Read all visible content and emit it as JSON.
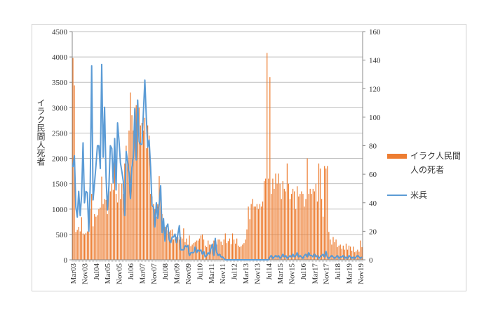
{
  "chart_data": {
    "type": "bar+line",
    "title": "",
    "ylabel": "イラク民間人死者",
    "ylabel_right": "",
    "ylim": [
      0,
      4500
    ],
    "ylim_right": [
      0,
      160
    ],
    "yticks": [
      "0",
      "500",
      "1000",
      "1500",
      "2000",
      "2500",
      "3000",
      "3500",
      "4000",
      "4500"
    ],
    "yticks_right": [
      "0",
      "20",
      "40",
      "60",
      "80",
      "100",
      "120",
      "140",
      "160"
    ],
    "grid": true,
    "legend_position": "right",
    "start_month": "2003-03",
    "xtick_labels": [
      "Mar03",
      "Nov03",
      "Jul04",
      "Mar05",
      "Nov05",
      "Jul06",
      "Mar07",
      "Nov07",
      "Jul08",
      "Mar09",
      "Nov09",
      "Jul10",
      "Mar11",
      "Nov11",
      "Jul12",
      "Mar13",
      "Nov13",
      "Jul14",
      "Mar15",
      "Nov15",
      "Jul16",
      "Mar17",
      "Nov17",
      "Jul18",
      "Mar19",
      "Nov19"
    ],
    "xtick_every_months": 8,
    "series": [
      {
        "name": "イラク人民間人の死者",
        "type": "bar",
        "axis": "left",
        "color": "#ED7D31",
        "values": [
          3980,
          3440,
          550,
          590,
          650,
          560,
          840,
          520,
          500,
          530,
          560,
          600,
          1000,
          1300,
          660,
          900,
          850,
          880,
          1000,
          1030,
          1640,
          1100,
          1200,
          1180,
          900,
          1400,
          1350,
          1500,
          1380,
          2400,
          1300,
          1130,
          1500,
          1200,
          1500,
          1300,
          1900,
          2250,
          2000,
          2550,
          3300,
          2850,
          2550,
          3000,
          3050,
          2800,
          3000,
          2650,
          2700,
          2550,
          2800,
          2200,
          2650,
          2450,
          1300,
          1250,
          1100,
          1000,
          850,
          1100,
          1650,
          1300,
          900,
          750,
          650,
          600,
          580,
          550,
          580,
          600,
          400,
          420,
          450,
          450,
          400,
          450,
          420,
          620,
          350,
          420,
          300,
          480,
          270,
          300,
          330,
          350,
          380,
          380,
          420,
          480,
          500,
          400,
          280,
          250,
          380,
          300,
          300,
          300,
          380,
          350,
          300,
          400,
          400,
          360,
          290,
          400,
          520,
          330,
          370,
          420,
          310,
          520,
          400,
          320,
          420,
          280,
          250,
          270,
          300,
          330,
          400,
          600,
          1050,
          800,
          1100,
          1200,
          1050,
          1050,
          1100,
          1000,
          1100,
          1050,
          1150,
          1550,
          1600,
          4080,
          1600,
          3600,
          1300,
          1600,
          1400,
          1700,
          1500,
          1700,
          1500,
          1200,
          1550,
          1400,
          1350,
          1900,
          1500,
          1200,
          1300,
          1400,
          1350,
          1000,
          1450,
          1250,
          1300,
          1350,
          1300,
          1050,
          1200,
          2000,
          1300,
          1400,
          1300,
          1400,
          1350,
          1500,
          1150,
          1900,
          1800,
          1200,
          850,
          1850,
          1800,
          1850,
          550,
          400,
          300,
          450,
          350,
          400,
          250,
          280,
          300,
          220,
          280,
          200,
          320,
          200,
          280,
          260,
          180,
          260,
          150,
          170,
          200,
          160,
          380,
          250
        ]
      },
      {
        "name": "米兵",
        "type": "line",
        "axis": "right",
        "color": "#5B9BD5",
        "values": [
          65,
          73,
          37,
          30,
          48,
          31,
          45,
          82,
          40,
          48,
          47,
          20,
          52,
          136,
          42,
          54,
          66,
          80,
          80,
          64,
          137,
          72,
          107,
          58,
          35,
          52,
          80,
          78,
          54,
          85,
          49,
          96,
          84,
          68,
          62,
          55,
          31,
          76,
          69,
          61,
          43,
          65,
          72,
          106,
          70,
          112,
          83,
          81,
          81,
          104,
          126,
          101,
          79,
          84,
          65,
          38,
          37,
          23,
          40,
          29,
          39,
          52,
          19,
          29,
          13,
          23,
          25,
          14,
          12,
          16,
          16,
          18,
          12,
          18,
          24,
          7,
          7,
          7,
          10,
          9,
          10,
          3,
          5,
          5,
          5,
          9,
          5,
          7,
          6,
          7,
          4,
          6,
          2,
          3,
          5,
          4,
          8,
          11,
          3,
          15,
          5,
          3,
          4,
          2,
          2,
          1,
          0,
          0,
          0,
          0,
          0,
          0,
          0,
          0,
          0,
          0,
          0,
          0,
          0,
          0,
          0,
          0,
          0,
          0,
          0,
          0,
          0,
          0,
          0,
          0,
          0,
          0,
          0,
          0,
          0,
          0,
          0,
          2,
          3,
          1,
          2,
          3,
          2,
          3,
          1,
          2,
          4,
          2,
          3,
          1,
          2,
          3,
          2,
          4,
          2,
          3,
          5,
          2,
          3,
          2,
          1,
          3,
          4,
          2,
          5,
          3,
          3,
          2,
          4,
          2,
          3,
          1,
          2,
          3,
          4,
          2,
          6,
          2,
          1,
          2,
          3,
          2,
          1,
          2,
          3,
          1,
          2,
          2,
          3,
          1,
          2,
          1,
          3,
          2,
          1,
          2,
          1,
          2,
          3,
          2,
          1,
          2
        ]
      }
    ]
  },
  "legend": {
    "civilians_line1": "イラク人民間",
    "civilians_line2": "人の死者",
    "soldiers": "米兵"
  }
}
